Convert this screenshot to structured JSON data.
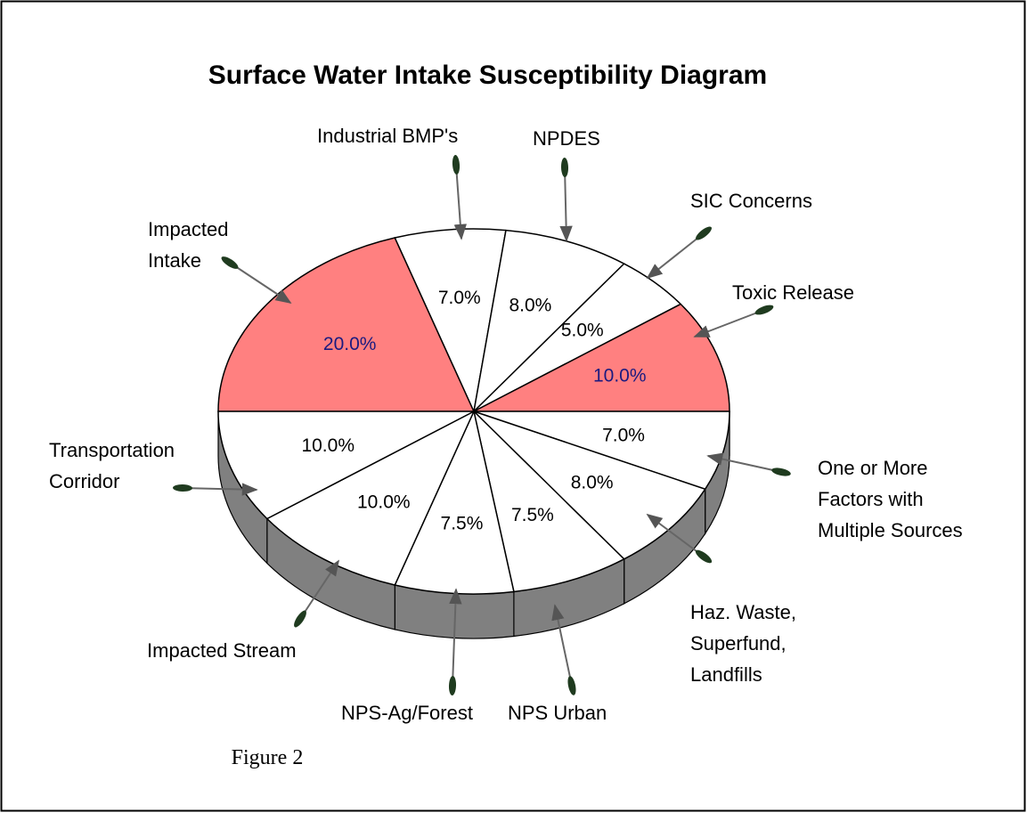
{
  "chart_data": {
    "type": "pie",
    "title": "Surface Water Intake Susceptibility Diagram",
    "caption": "Figure 2",
    "categories": [
      "Impacted\nIntake",
      "Industrial BMP's",
      "NPDES",
      "SIC Concerns",
      "Toxic Release",
      "One or More\nFactors with\nMultiple Sources",
      "Haz. Waste,\nSuperfund,\nLandfills",
      "NPS Urban",
      "NPS-Ag/Forest",
      "Impacted Stream",
      "Transportation\nCorridor"
    ],
    "values": [
      20,
      7,
      8,
      5,
      10,
      7,
      8,
      7.5,
      7.5,
      10,
      10
    ],
    "value_labels": [
      "20.0%",
      "7.0%",
      "8.0%",
      "5.0%",
      "10.0%",
      "7.0%",
      "8.0%",
      "7.5%",
      "7.5%",
      "10.0%",
      "10.0%"
    ],
    "colors": [
      "#ff8080",
      "#ffffff",
      "#ffffff",
      "#ffffff",
      "#ff8080",
      "#ffffff",
      "#ffffff",
      "#ffffff",
      "#ffffff",
      "#ffffff",
      "#ffffff"
    ],
    "start_angle": 180,
    "direction": "clockwise"
  }
}
